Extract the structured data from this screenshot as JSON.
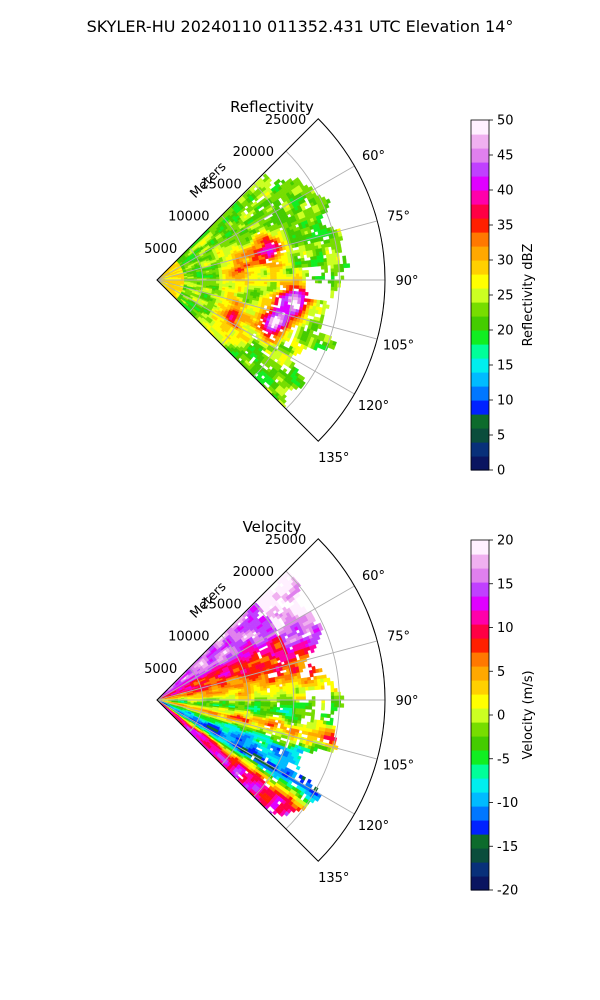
{
  "figure_title": "SKYLER-HU  20240110  011352.431 UTC Elevation 14°",
  "colors": {
    "refl_stops": [
      "#0a1560",
      "#08307a",
      "#0a4d3c",
      "#0d6b2c",
      "#0022ff",
      "#0077ff",
      "#00bbff",
      "#00eeee",
      "#00ff99",
      "#11ee22",
      "#44cc00",
      "#77dd00",
      "#ccff22",
      "#ffff00",
      "#ffd000",
      "#ffa800",
      "#ff7800",
      "#ff2000",
      "#ff0044",
      "#ff00aa",
      "#e000ff",
      "#c040ff",
      "#e080ee",
      "#f0b0f0",
      "#fff0ff"
    ],
    "vel_stops": [
      "#0a1560",
      "#08307a",
      "#0a4d3c",
      "#0d6b2c",
      "#0022ff",
      "#0077ff",
      "#00bbff",
      "#00eeee",
      "#00ff99",
      "#11ee22",
      "#44cc00",
      "#77dd00",
      "#ccff22",
      "#ffff00",
      "#ffd000",
      "#ffa800",
      "#ff7800",
      "#ff2000",
      "#ff0044",
      "#ff00aa",
      "#e000ff",
      "#c040ff",
      "#e080ee",
      "#f0b0f0",
      "#fff0ff"
    ]
  },
  "chart_data": [
    {
      "type": "heatmap",
      "subtype": "radar-sector (polar PPI)",
      "title": "Reflectivity",
      "radial_label": "Meters",
      "radial_ticks": [
        5000,
        10000,
        15000,
        20000,
        25000
      ],
      "radial_tick_labels": [
        "5000",
        "10000",
        "15000",
        "20000",
        "25000"
      ],
      "rlim": [
        0,
        25000
      ],
      "azimuth_range_deg": [
        45,
        135
      ],
      "azimuth_ticks_deg": [
        60,
        75,
        90,
        105,
        120,
        135
      ],
      "azimuth_tick_labels": [
        "60°",
        "75°",
        "90°",
        "105°",
        "120°",
        "135°"
      ],
      "grid": true,
      "colorbar": {
        "label": "Reflectivity dBZ",
        "range": [
          0,
          50
        ],
        "ticks": [
          0,
          5,
          10,
          15,
          20,
          25,
          30,
          35,
          40,
          45,
          50
        ],
        "tick_labels": [
          "0",
          "5",
          "10",
          "15",
          "20",
          "25",
          "30",
          "35",
          "40",
          "45",
          "50"
        ]
      },
      "cells": {
        "value_range_shown": [
          12,
          45
        ],
        "max_data_range_m": 21000,
        "dominant_range": [
          18,
          27
        ],
        "cores": [
          {
            "azimuth_deg": 98,
            "range_m": 15000,
            "value": 44
          },
          {
            "azimuth_deg": 110,
            "range_m": 13500,
            "value": 42
          },
          {
            "azimuth_deg": 75,
            "range_m": 12500,
            "value": 36
          },
          {
            "azimuth_deg": 82,
            "range_m": 9000,
            "value": 30
          },
          {
            "azimuth_deg": 116,
            "range_m": 9000,
            "value": 32
          }
        ]
      }
    },
    {
      "type": "heatmap",
      "subtype": "radar-sector (polar PPI)",
      "title": "Velocity",
      "radial_label": "Meters",
      "radial_ticks": [
        5000,
        10000,
        15000,
        20000,
        25000
      ],
      "radial_tick_labels": [
        "5000",
        "10000",
        "15000",
        "20000",
        "25000"
      ],
      "rlim": [
        0,
        25000
      ],
      "azimuth_range_deg": [
        45,
        135
      ],
      "azimuth_ticks_deg": [
        60,
        75,
        90,
        105,
        120,
        135
      ],
      "azimuth_tick_labels": [
        "60°",
        "75°",
        "90°",
        "105°",
        "120°",
        "135°"
      ],
      "grid": true,
      "colorbar": {
        "label": "Velocity (m/s)",
        "range": [
          -20,
          20
        ],
        "ticks": [
          -20,
          -15,
          -10,
          -5,
          0,
          5,
          10,
          15,
          20
        ],
        "tick_labels": [
          "-20",
          "-15",
          "-10",
          "-5",
          "0",
          "5",
          "10",
          "15",
          "20"
        ]
      },
      "cells": {
        "value_range_shown": [
          -13,
          16
        ],
        "max_data_range_m": 21000,
        "azimuth_profile": [
          {
            "azimuth_deg": 55,
            "value": 16
          },
          {
            "azimuth_deg": 65,
            "value": 10
          },
          {
            "azimuth_deg": 78,
            "value": 7
          },
          {
            "azimuth_deg": 86,
            "value": 2
          },
          {
            "azimuth_deg": 95,
            "value": -4
          },
          {
            "azimuth_deg": 102,
            "value": 6
          },
          {
            "azimuth_deg": 110,
            "value": -8
          },
          {
            "azimuth_deg": 120,
            "value": -13
          },
          {
            "azimuth_deg": 128,
            "value": 12
          }
        ]
      }
    }
  ]
}
